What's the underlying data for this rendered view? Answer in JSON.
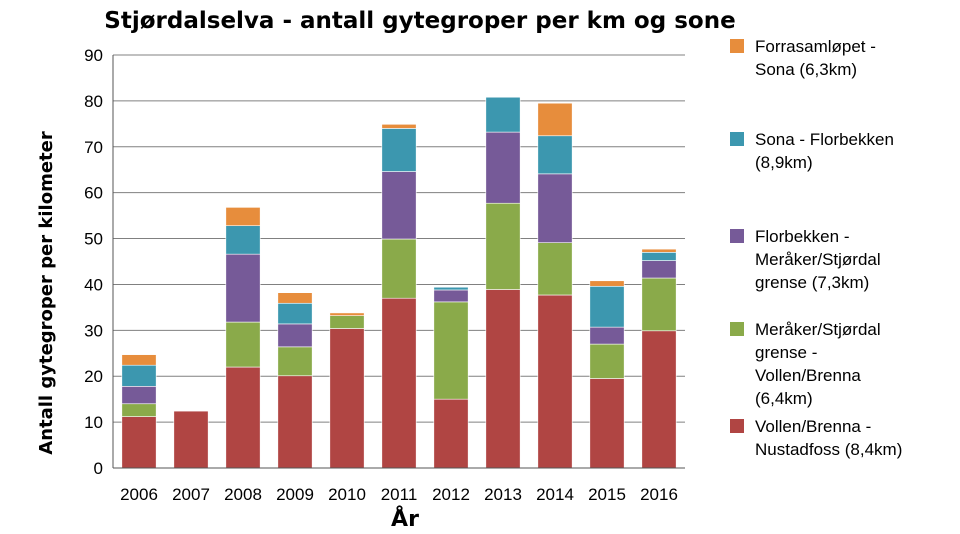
{
  "chart_data": {
    "type": "bar",
    "stacked": true,
    "title": "Stjørdalselva - antall gytegroper per km og sone",
    "xlabel": "År",
    "ylabel": "Antall gytegroper per kilometer",
    "ylim": [
      0,
      90
    ],
    "yticks": [
      0,
      10,
      20,
      30,
      40,
      50,
      60,
      70,
      80,
      90
    ],
    "grid": true,
    "legend_position": "right",
    "categories": [
      "2006",
      "2007",
      "2008",
      "2009",
      "2010",
      "2011",
      "2012",
      "2013",
      "2014",
      "2015",
      "2016"
    ],
    "series": [
      {
        "name": "Vollen/Brenna - Nustadfoss (8,4km)",
        "legend_lines": [
          "Vollen/Brenna -",
          "Nustadfoss (8,4km)"
        ],
        "color": "#b04543",
        "values": [
          11.2,
          12.4,
          22.0,
          20.1,
          30.4,
          37.0,
          15.0,
          38.9,
          37.7,
          19.5,
          29.9
        ]
      },
      {
        "name": "Meråker/Stjørdal grense - Vollen/Brenna (6,4km)",
        "legend_lines": [
          "Meråker/Stjørdal",
          "grense -",
          "Vollen/Brenna",
          "(6,4km)"
        ],
        "color": "#8aaa4a",
        "values": [
          2.8,
          0,
          9.8,
          6.3,
          2.8,
          12.9,
          21.2,
          18.8,
          11.4,
          7.5,
          11.5
        ]
      },
      {
        "name": "Florbekken - Meråker/Stjørdal grense (7,3km)",
        "legend_lines": [
          "Florbekken -",
          "Meråker/Stjørdal",
          "grense (7,3km)"
        ],
        "color": "#765a98",
        "values": [
          3.8,
          0,
          14.8,
          5.0,
          0,
          14.7,
          2.6,
          15.5,
          15.0,
          3.7,
          3.8
        ]
      },
      {
        "name": "Sona - Florbekken (8,9km)",
        "legend_lines": [
          "Sona - Florbekken",
          "(8,9km)"
        ],
        "color": "#3c97af",
        "values": [
          4.6,
          0,
          6.2,
          4.5,
          0,
          9.4,
          0.6,
          7.6,
          8.3,
          8.9,
          1.8
        ]
      },
      {
        "name": "Forrasamløpet - Sona (6,3km)",
        "legend_lines": [
          "Forrasamløpet -",
          "Sona (6,3km)"
        ],
        "color": "#e78d3c",
        "values": [
          2.3,
          0,
          4.0,
          2.3,
          0.6,
          0.9,
          0,
          0,
          7.1,
          1.2,
          0.7
        ]
      }
    ]
  }
}
